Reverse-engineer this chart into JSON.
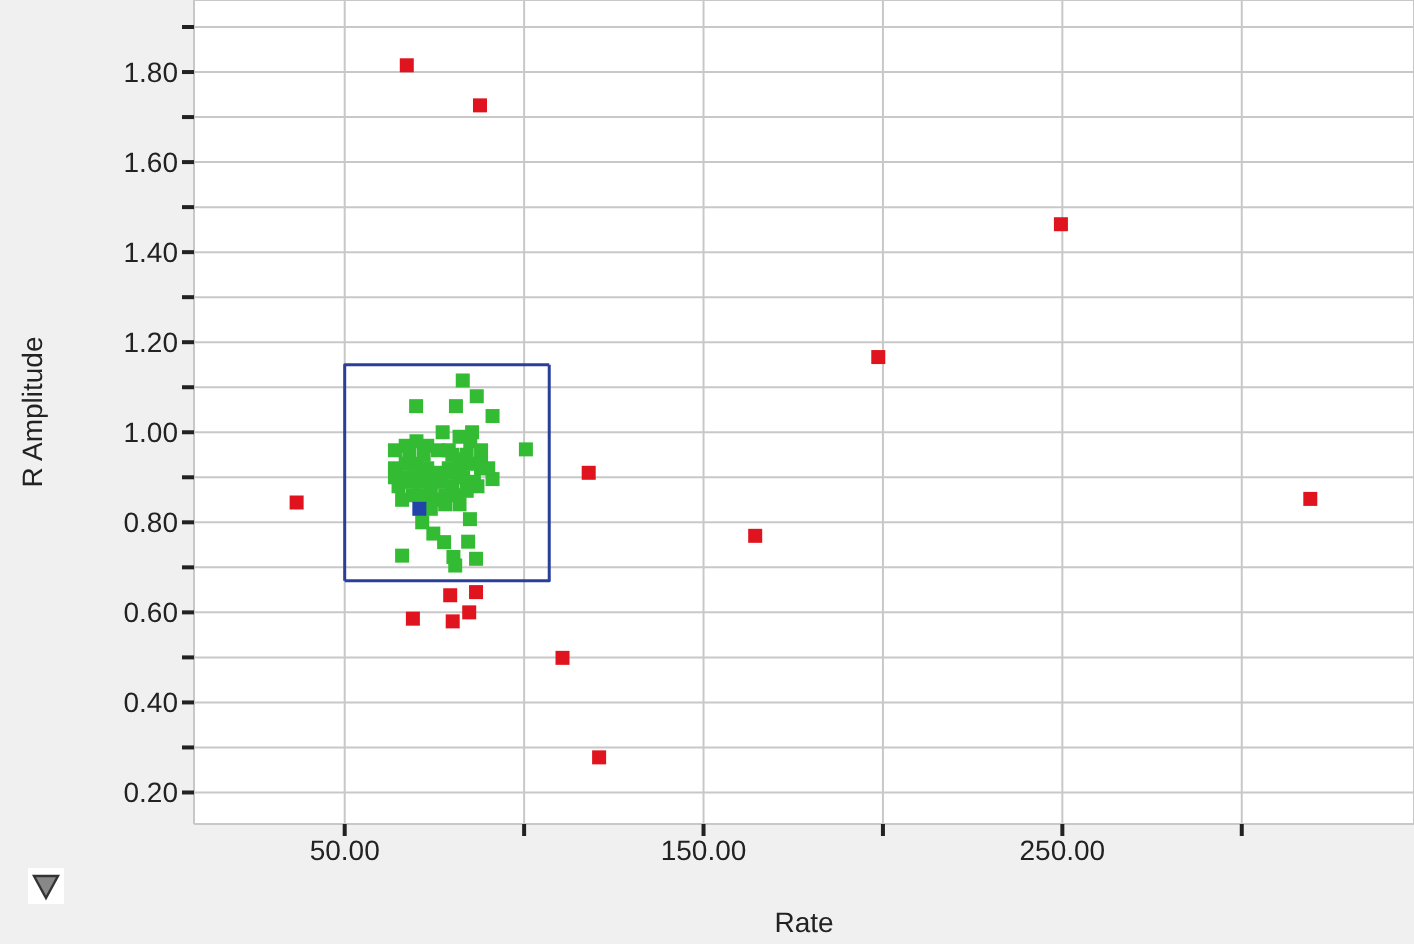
{
  "chart_data": {
    "type": "scatter",
    "xlabel": "Rate",
    "ylabel": "R Amplitude",
    "marker": "square",
    "grid": true,
    "xlim": [
      8,
      348
    ],
    "ylim": [
      0.13,
      1.96
    ],
    "xticks": [
      {
        "value": 50,
        "label": "50.00"
      },
      {
        "value": 100,
        "label": null
      },
      {
        "value": 150,
        "label": "150.00"
      },
      {
        "value": 200,
        "label": null
      },
      {
        "value": 250,
        "label": "250.00"
      },
      {
        "value": 300,
        "label": null
      }
    ],
    "yticks": [
      {
        "value": 0.2,
        "label": "0.20"
      },
      {
        "value": 0.3,
        "label": null
      },
      {
        "value": 0.4,
        "label": "0.40"
      },
      {
        "value": 0.5,
        "label": null
      },
      {
        "value": 0.6,
        "label": "0.60"
      },
      {
        "value": 0.7,
        "label": null
      },
      {
        "value": 0.8,
        "label": "0.80"
      },
      {
        "value": 0.9,
        "label": null
      },
      {
        "value": 1.0,
        "label": "1.00"
      },
      {
        "value": 1.1,
        "label": null
      },
      {
        "value": 1.2,
        "label": "1.20"
      },
      {
        "value": 1.3,
        "label": null
      },
      {
        "value": 1.4,
        "label": "1.40"
      },
      {
        "value": 1.5,
        "label": null
      },
      {
        "value": 1.6,
        "label": "1.60"
      },
      {
        "value": 1.7,
        "label": null
      },
      {
        "value": 1.8,
        "label": "1.80"
      },
      {
        "value": 1.9,
        "label": null
      }
    ],
    "series": [
      {
        "type": "line",
        "marker": "none",
        "color": "#2a3f9a",
        "x": [
          50,
          50,
          107
        ],
        "values": [
          0.67,
          1.15,
          1.15
        ]
      },
      {
        "type": "line",
        "marker": "none",
        "color": "#2a3f9a",
        "x": [
          50,
          107,
          107
        ],
        "values": [
          0.67,
          0.67,
          1.15
        ]
      },
      {
        "color": "#e0141e",
        "x": [
          67.3,
          87.7,
          118,
          36.6,
          69,
          79.4,
          86.6,
          80.1,
          84.7,
          110.7,
          120.9,
          164.4,
          198.7,
          249.6,
          319.1
        ],
        "values": [
          1.815,
          1.726,
          0.91,
          0.844,
          0.586,
          0.638,
          0.645,
          0.58,
          0.6,
          0.499,
          0.278,
          0.77,
          1.167,
          1.462,
          0.852
        ]
      },
      {
        "color": "#33bb33",
        "x": [
          82.9,
          86.8,
          69.9,
          81,
          91.2,
          100.5,
          77.3,
          85.5,
          91.2,
          84.9,
          66,
          84.4,
          86.6,
          80.3,
          80.8,
          77.7,
          74.7,
          71.6,
          64,
          67,
          70,
          73,
          76,
          79,
          82,
          85,
          88,
          64,
          67,
          70,
          73,
          79,
          82,
          85,
          88,
          65,
          68,
          71,
          74,
          77,
          80,
          83,
          86,
          66,
          69,
          72,
          75,
          78,
          81,
          84,
          87,
          64,
          67,
          70,
          73,
          76,
          79,
          82,
          68,
          72,
          80,
          84,
          74,
          78,
          82,
          88,
          90
        ],
        "values": [
          1.115,
          1.08,
          1.058,
          1.058,
          1.036,
          0.962,
          1.0,
          1.0,
          0.896,
          0.807,
          0.726,
          0.757,
          0.719,
          0.723,
          0.704,
          0.756,
          0.775,
          0.8,
          0.96,
          0.97,
          0.98,
          0.97,
          0.96,
          0.96,
          0.99,
          0.98,
          0.96,
          0.92,
          0.93,
          0.93,
          0.92,
          0.92,
          0.94,
          0.93,
          0.92,
          0.88,
          0.89,
          0.89,
          0.88,
          0.89,
          0.88,
          0.9,
          0.89,
          0.85,
          0.86,
          0.86,
          0.85,
          0.86,
          0.86,
          0.87,
          0.88,
          0.9,
          0.9,
          0.91,
          0.9,
          0.91,
          0.91,
          0.91,
          0.95,
          0.95,
          0.95,
          0.95,
          0.83,
          0.84,
          0.84,
          0.93,
          0.92
        ]
      },
      {
        "color": "#2244aa",
        "x": [
          70.8
        ],
        "values": [
          0.83
        ]
      }
    ]
  }
}
